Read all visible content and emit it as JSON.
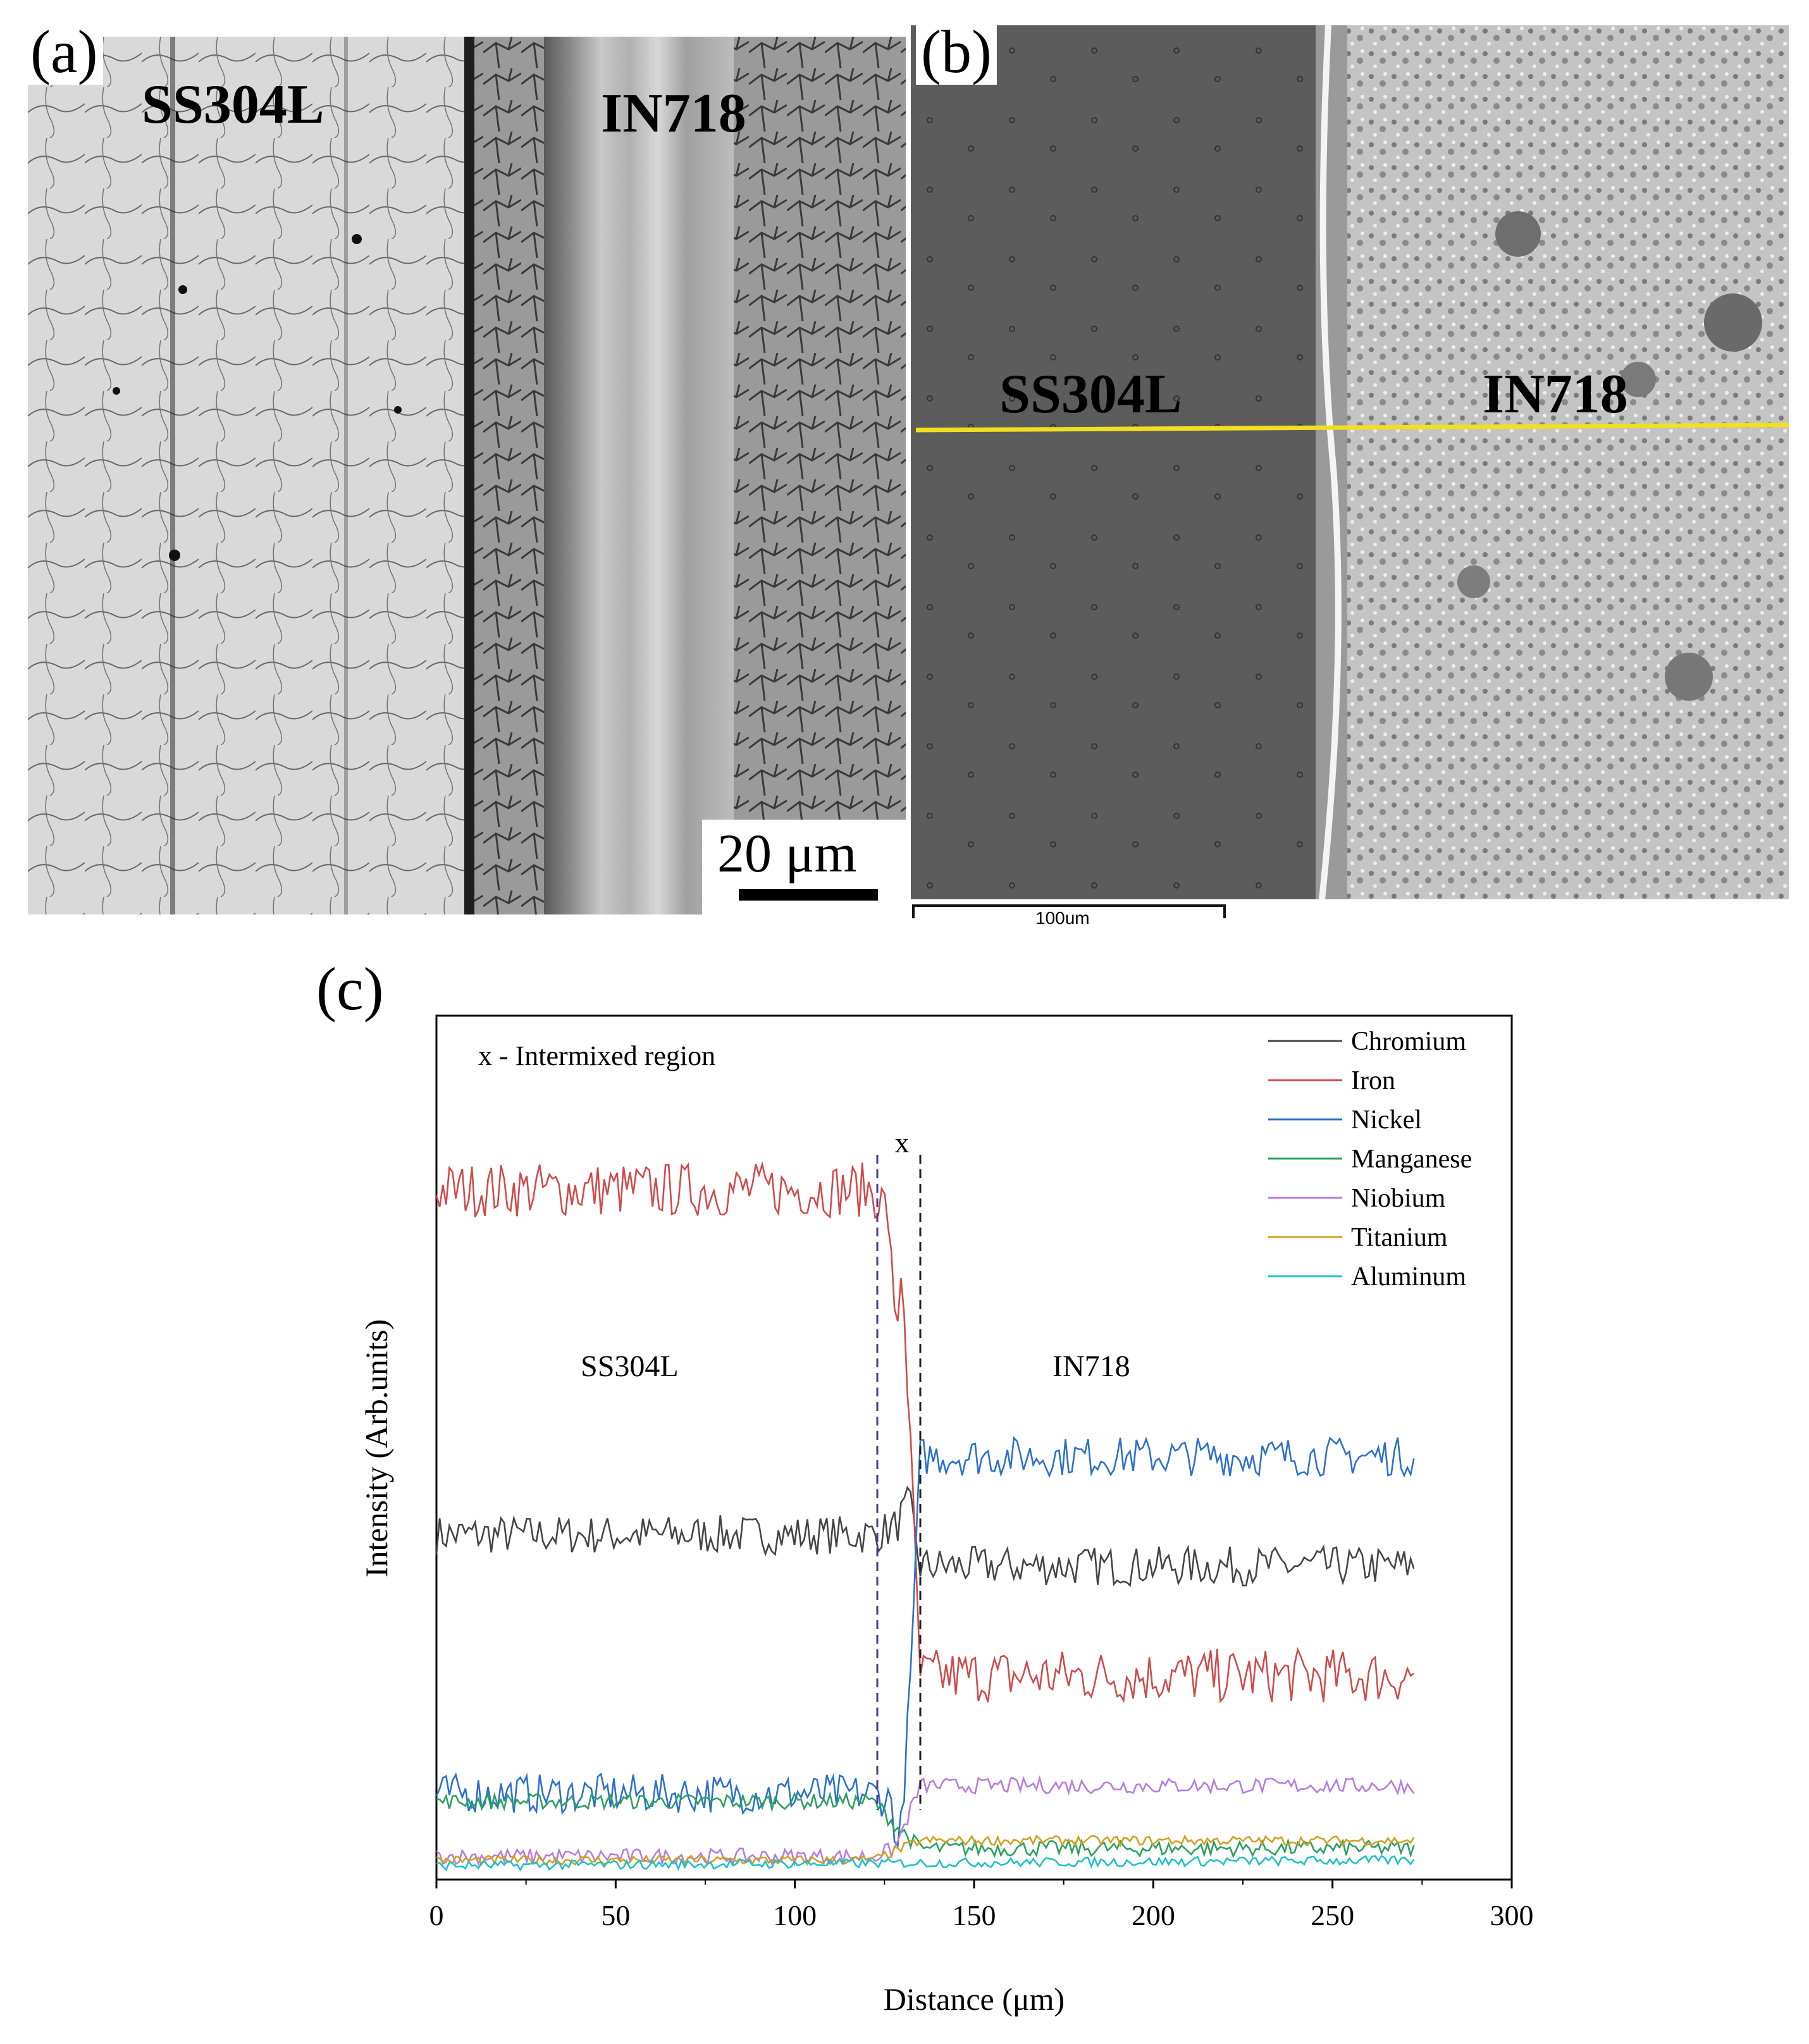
{
  "panel_a": {
    "label": "(a)",
    "left_material": "SS304L",
    "right_material": "IN718",
    "scale_bar": "20 μm"
  },
  "panel_b": {
    "label": "(b)",
    "left_material": "SS304L",
    "right_material": "IN718",
    "scale_bar": "100um",
    "line_color": "#f0e020"
  },
  "panel_c": {
    "label": "(c)"
  },
  "chart_data": {
    "type": "line",
    "xlabel": "Distance (μm)",
    "ylabel": "Intensity (Arb.units)",
    "xlim": [
      0,
      300
    ],
    "xticks": [
      0,
      50,
      100,
      150,
      200,
      250,
      300
    ],
    "y_ticks_shown": false,
    "legend_position": "top-right",
    "annotations": {
      "note": "x - Intermixed region",
      "region_marker": "x",
      "left_region": "SS304L",
      "right_region": "IN718"
    },
    "intermixed_region": [
      123,
      135
    ],
    "series": [
      {
        "name": "Chromium",
        "color": "#444444",
        "x": [
          0,
          122,
          128,
          132,
          135,
          273
        ],
        "y": [
          0.43,
          0.43,
          0.44,
          0.47,
          0.39,
          0.39
        ]
      },
      {
        "name": "Iron",
        "color": "#d04a4a",
        "x": [
          0,
          122,
          126,
          128,
          130,
          132,
          135,
          273
        ],
        "y": [
          0.87,
          0.87,
          0.84,
          0.68,
          0.78,
          0.56,
          0.25,
          0.25
        ]
      },
      {
        "name": "Nickel",
        "color": "#2b6fd0",
        "x": [
          0,
          122,
          127,
          129,
          130,
          132,
          135,
          273
        ],
        "y": [
          0.1,
          0.1,
          0.09,
          0.02,
          0.08,
          0.22,
          0.53,
          0.53
        ]
      },
      {
        "name": "Manganese",
        "color": "#2aa060",
        "x": [
          0,
          122,
          128,
          135,
          273
        ],
        "y": [
          0.09,
          0.09,
          0.06,
          0.03,
          0.03
        ]
      },
      {
        "name": "Niobium",
        "color": "#b67ce0",
        "x": [
          0,
          122,
          128,
          135,
          273
        ],
        "y": [
          0.02,
          0.02,
          0.03,
          0.11,
          0.11
        ]
      },
      {
        "name": "Titanium",
        "color": "#d0a020",
        "x": [
          0,
          122,
          135,
          273
        ],
        "y": [
          0.015,
          0.015,
          0.04,
          0.04
        ]
      },
      {
        "name": "Aluminum",
        "color": "#20c0c8",
        "x": [
          0,
          273
        ],
        "y": [
          0.008,
          0.015
        ]
      }
    ]
  }
}
